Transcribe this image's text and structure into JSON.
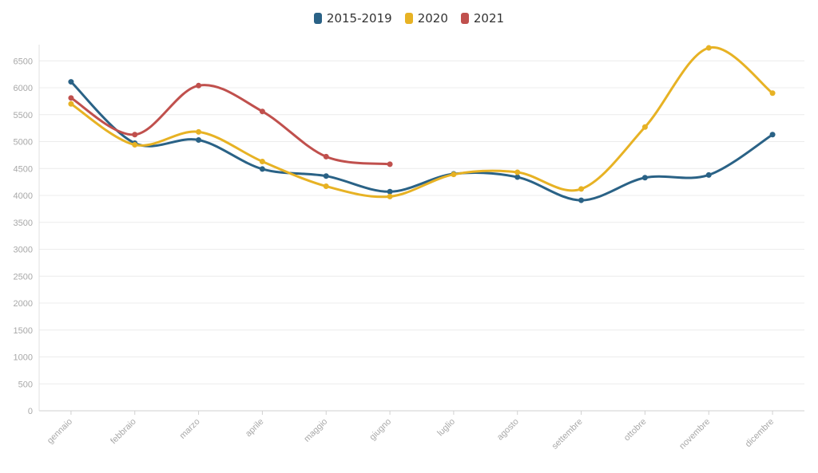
{
  "chart_data": {
    "type": "line",
    "title": "",
    "xlabel": "",
    "ylabel": "",
    "categories": [
      "gennaio",
      "febbraio",
      "marzo",
      "aprile",
      "maggio",
      "giugno",
      "luglio",
      "agosto",
      "settembre",
      "ottobre",
      "novembre",
      "dicembre"
    ],
    "ylim": [
      0,
      6800
    ],
    "yticks": [
      0,
      500,
      1000,
      1500,
      2000,
      2500,
      3000,
      3500,
      4000,
      4500,
      5000,
      5500,
      6000,
      6500
    ],
    "grid": true,
    "legend_position": "top-center",
    "series": [
      {
        "name": "2015-2019",
        "color": "#2a6286",
        "values": [
          6110,
          4970,
          5030,
          4490,
          4360,
          4070,
          4400,
          4340,
          3910,
          4330,
          4380,
          5130
        ]
      },
      {
        "name": "2020",
        "color": "#e7b224",
        "values": [
          5700,
          4940,
          5180,
          4630,
          4170,
          3980,
          4390,
          4430,
          4120,
          5270,
          6740,
          5900
        ]
      },
      {
        "name": "2021",
        "color": "#c0504d",
        "values": [
          5810,
          5130,
          6040,
          5560,
          4720,
          4580,
          null,
          null,
          null,
          null,
          null,
          null
        ]
      }
    ]
  }
}
